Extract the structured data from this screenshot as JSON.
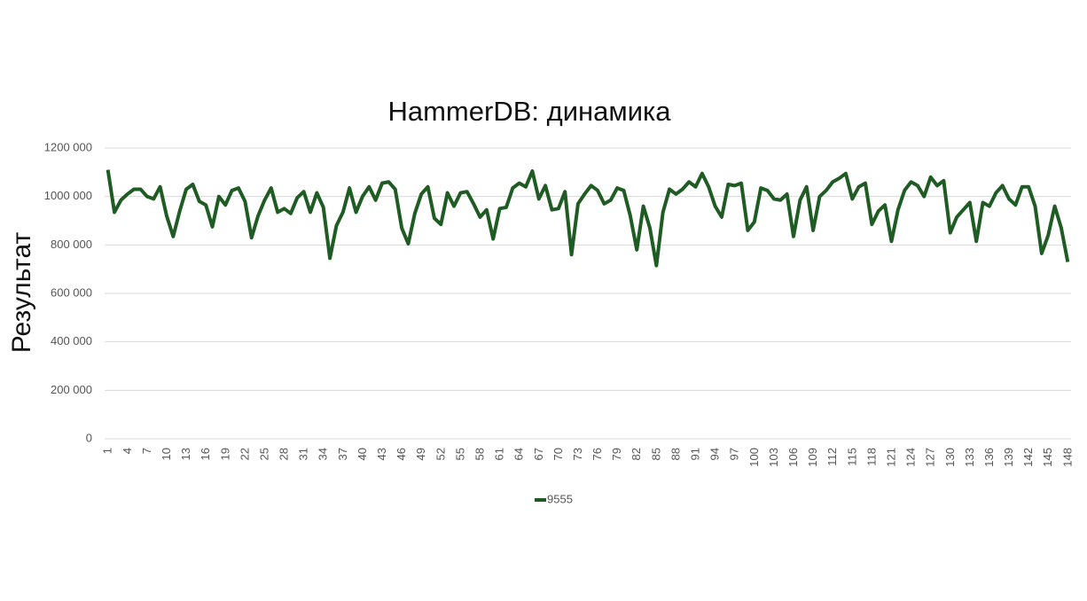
{
  "chart_data": {
    "type": "line",
    "title": "HammerDB: динамика",
    "y_label": "Результат",
    "categories": [
      "1",
      null,
      null,
      "4",
      null,
      null,
      "7",
      null,
      null,
      "10",
      null,
      null,
      "13",
      null,
      null,
      "16",
      null,
      null,
      "19",
      null,
      null,
      "22",
      null,
      null,
      "25",
      null,
      null,
      "28",
      null,
      null,
      "31",
      null,
      null,
      "34",
      null,
      null,
      "37",
      null,
      null,
      "40",
      null,
      null,
      "43",
      null,
      null,
      "46",
      null,
      null,
      "49",
      null,
      null,
      "52",
      null,
      null,
      "55",
      null,
      null,
      "58",
      null,
      null,
      "61",
      null,
      null,
      "64",
      null,
      null,
      "67",
      null,
      null,
      "70",
      null,
      null,
      "73",
      null,
      null,
      "76",
      null,
      null,
      "79",
      null,
      null,
      "82",
      null,
      null,
      "85",
      null,
      null,
      "88",
      null,
      null,
      "91",
      null,
      null,
      "94",
      null,
      null,
      "97",
      null,
      null,
      "100",
      null,
      null,
      "103",
      null,
      null,
      "106",
      null,
      null,
      "109",
      null,
      null,
      "112",
      null,
      null,
      "115",
      null,
      null,
      "118",
      null,
      null,
      "121",
      null,
      null,
      "124",
      null,
      null,
      "127",
      null,
      null,
      "130",
      null,
      null,
      "133",
      null,
      null,
      "136",
      null,
      null,
      "139",
      null,
      null,
      "142",
      null,
      null,
      "145",
      null,
      null,
      "148"
    ],
    "series": [
      {
        "name": "9555",
        "color": "#1e5c23",
        "values": [
          1110000,
          935000,
          985000,
          1010000,
          1030000,
          1030000,
          1000000,
          990000,
          1040000,
          920000,
          835000,
          940000,
          1030000,
          1050000,
          980000,
          965000,
          875000,
          1000000,
          965000,
          1025000,
          1035000,
          980000,
          830000,
          920000,
          985000,
          1035000,
          935000,
          950000,
          930000,
          995000,
          1020000,
          935000,
          1015000,
          955000,
          745000,
          880000,
          935000,
          1035000,
          935000,
          1000000,
          1040000,
          985000,
          1055000,
          1060000,
          1030000,
          870000,
          805000,
          930000,
          1010000,
          1040000,
          910000,
          885000,
          1015000,
          960000,
          1015000,
          1020000,
          970000,
          915000,
          945000,
          825000,
          950000,
          955000,
          1035000,
          1055000,
          1040000,
          1105000,
          990000,
          1045000,
          945000,
          950000,
          1020000,
          760000,
          970000,
          1010000,
          1045000,
          1025000,
          970000,
          985000,
          1035000,
          1025000,
          920000,
          780000,
          960000,
          870000,
          715000,
          935000,
          1030000,
          1010000,
          1030000,
          1060000,
          1040000,
          1095000,
          1040000,
          960000,
          915000,
          1050000,
          1045000,
          1055000,
          860000,
          895000,
          1035000,
          1025000,
          990000,
          985000,
          1010000,
          835000,
          985000,
          1040000,
          860000,
          1000000,
          1025000,
          1060000,
          1075000,
          1095000,
          990000,
          1040000,
          1055000,
          885000,
          940000,
          965000,
          815000,
          945000,
          1025000,
          1060000,
          1045000,
          1000000,
          1080000,
          1045000,
          1065000,
          850000,
          915000,
          945000,
          975000,
          815000,
          975000,
          960000,
          1015000,
          1045000,
          990000,
          965000,
          1040000,
          1040000,
          960000,
          765000,
          840000,
          960000,
          870000,
          730000
        ]
      }
    ],
    "ylim": [
      0,
      1200000
    ],
    "yticks": [
      0,
      {
        "value": 200000,
        "label": "200 000"
      },
      {
        "value": 400000,
        "label": "400 000"
      },
      {
        "value": 600000,
        "label": "600 000"
      },
      {
        "value": 800000,
        "label": "800 000"
      },
      {
        "value": 1000000,
        "label": "1000 000"
      },
      {
        "value": 1200000,
        "label": "1200 000"
      }
    ],
    "grid": true
  }
}
